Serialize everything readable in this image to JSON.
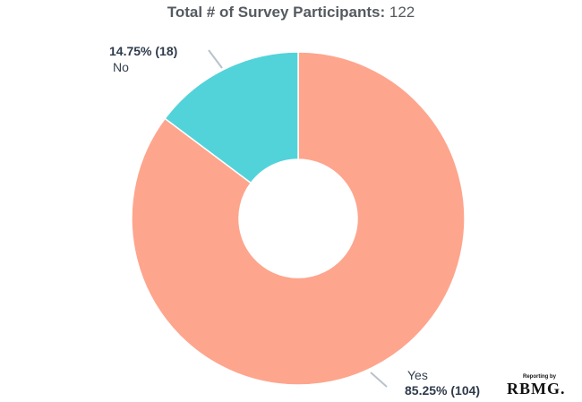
{
  "header": {
    "title_label": "Total # of Survey Participants:",
    "title_value": "122"
  },
  "chart_data": {
    "type": "pie",
    "title": "Total # of Survey Participants: 122",
    "donut": true,
    "slices": [
      {
        "label": "Yes",
        "value": 104,
        "percent": 85.25,
        "percent_label": "85.25% (104)",
        "color": "#fea58d"
      },
      {
        "label": "No",
        "value": 18,
        "percent": 14.75,
        "percent_label": "14.75% (18)",
        "color": "#52d3d9"
      }
    ]
  },
  "branding": {
    "small_text": "Reporting by",
    "logo_text": "RBMG."
  }
}
